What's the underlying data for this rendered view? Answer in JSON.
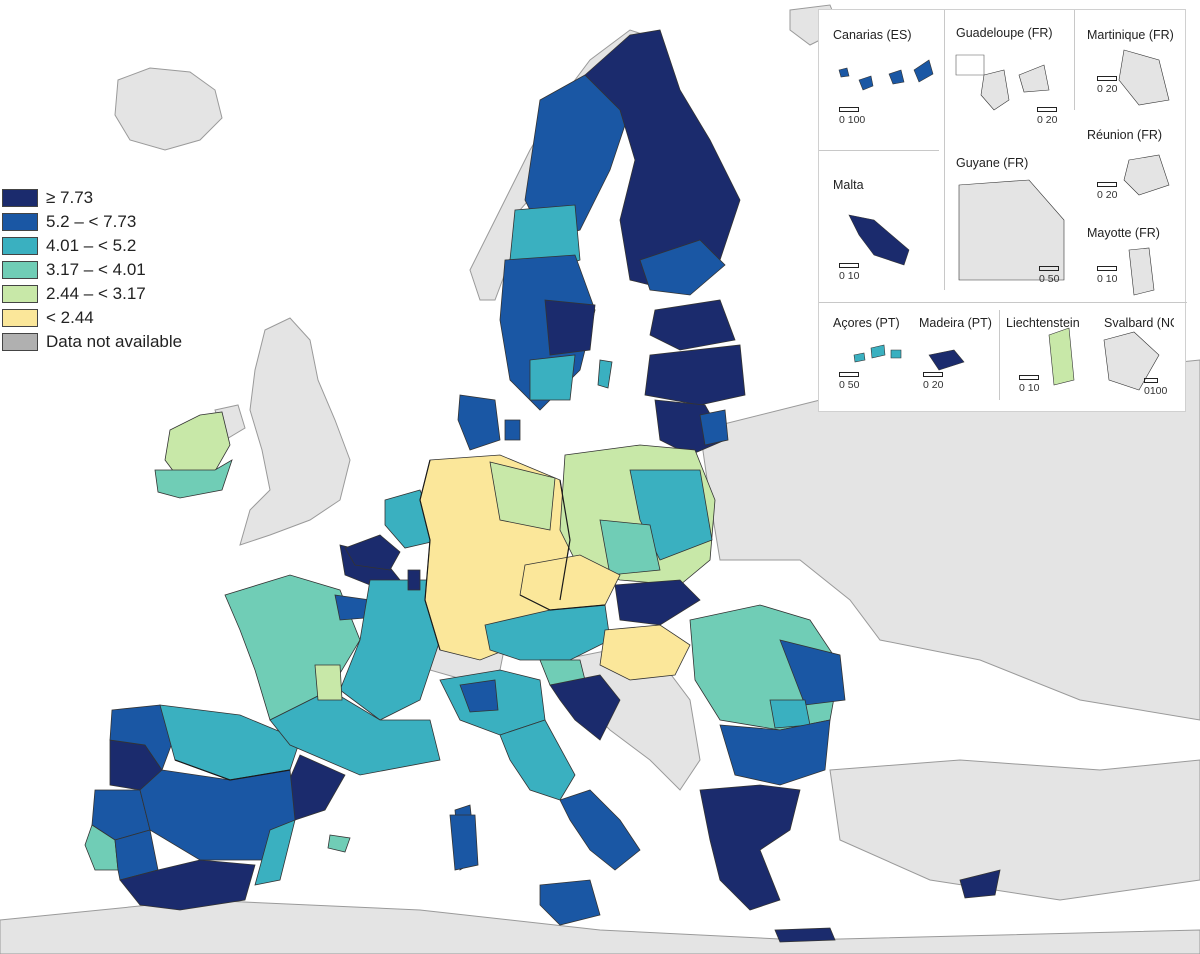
{
  "legend": {
    "items": [
      {
        "label": "≥ 7.73",
        "color": "#1b2b6d"
      },
      {
        "label": "5.2 – < 7.73",
        "color": "#1a57a4"
      },
      {
        "label": "4.01 – < 5.2",
        "color": "#3ab0c0"
      },
      {
        "label": "3.17 – < 4.01",
        "color": "#70cdb6"
      },
      {
        "label": "2.44 – < 3.17",
        "color": "#c8e8a8"
      },
      {
        "label": "< 2.44",
        "color": "#fbe79a"
      },
      {
        "label": "Data not available",
        "color": "#b0b0b0"
      }
    ]
  },
  "colors": {
    "non_eu_land": "#e4e4e4",
    "sea": "#ffffff",
    "border": "#222222"
  },
  "insets": [
    {
      "title": "Canarias (ES)",
      "scale": "0  100"
    },
    {
      "title": "Guadeloupe (FR)",
      "scale": "0  20"
    },
    {
      "title": "Martinique (FR)",
      "scale": "0  20"
    },
    {
      "title": "Réunion (FR)",
      "scale": "0  20"
    },
    {
      "title": "Malta",
      "scale": "0  10"
    },
    {
      "title": "Guyane (FR)",
      "scale": "0 50"
    },
    {
      "title": "Mayotte (FR)",
      "scale": "0  10"
    },
    {
      "title": "Açores (PT)",
      "scale": "0  50"
    },
    {
      "title": "Madeira (PT)",
      "scale": "0  20"
    },
    {
      "title": "Liechtenstein",
      "scale": "0  10"
    },
    {
      "title": "Svalbard (NO)",
      "scale": "0100"
    }
  ]
}
